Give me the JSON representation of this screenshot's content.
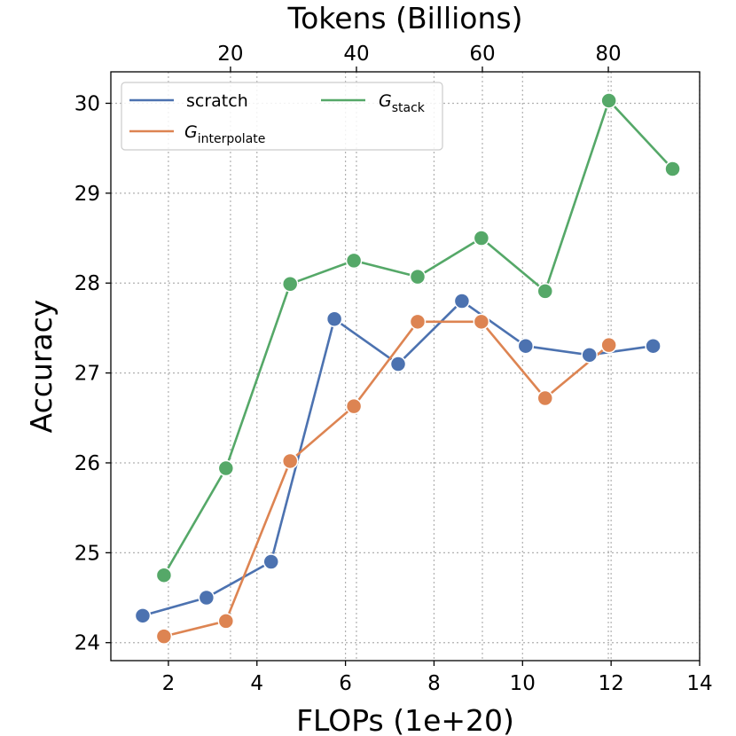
{
  "chart_data": {
    "type": "line",
    "xlabel": "FLOPs (1e+20)",
    "ylabel": "Accuracy",
    "top_xlabel": "Tokens (Billions)",
    "xlim": [
      0.7,
      14.0
    ],
    "ylim": [
      23.8,
      30.35
    ],
    "top_xlim": [
      1.0,
      94.5
    ],
    "xticks": [
      2,
      4,
      6,
      8,
      10,
      12,
      14
    ],
    "yticks": [
      24,
      25,
      26,
      27,
      28,
      29,
      30
    ],
    "top_xticks": [
      20,
      40,
      60,
      80
    ],
    "grid": true,
    "legend_position": "top-left",
    "series": [
      {
        "name": "scratch",
        "color": "#4c72b0",
        "x": [
          1.42,
          2.86,
          4.32,
          5.75,
          7.19,
          8.63,
          10.07,
          11.51,
          12.95
        ],
        "y": [
          24.3,
          24.5,
          24.9,
          27.6,
          27.1,
          27.8,
          27.3,
          27.2,
          27.3
        ]
      },
      {
        "name": "G",
        "subscript": "interpolate",
        "color": "#dd8452",
        "x": [
          1.9,
          3.3,
          4.75,
          6.19,
          7.63,
          9.07,
          10.51,
          11.95
        ],
        "y": [
          24.07,
          24.24,
          26.02,
          26.63,
          27.57,
          27.57,
          26.72,
          27.31
        ]
      },
      {
        "name": "G",
        "subscript": "stack",
        "color": "#55a868",
        "x": [
          1.9,
          3.3,
          4.75,
          6.19,
          7.63,
          9.07,
          10.51,
          11.95,
          13.39
        ],
        "y": [
          24.75,
          25.94,
          27.99,
          28.25,
          28.07,
          28.5,
          27.91,
          30.03,
          29.27
        ]
      }
    ]
  }
}
